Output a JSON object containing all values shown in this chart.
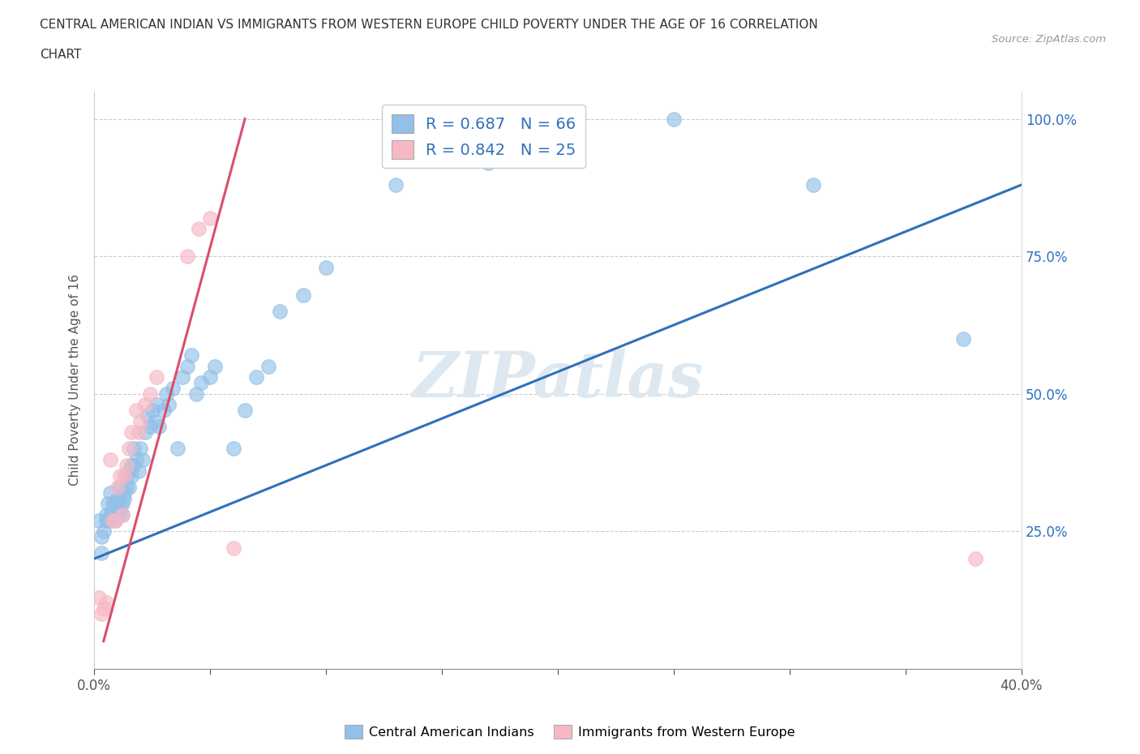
{
  "title_line1": "CENTRAL AMERICAN INDIAN VS IMMIGRANTS FROM WESTERN EUROPE CHILD POVERTY UNDER THE AGE OF 16 CORRELATION",
  "title_line2": "CHART",
  "source_text": "Source: ZipAtlas.com",
  "ylabel": "Child Poverty Under the Age of 16",
  "xlim": [
    0.0,
    0.4
  ],
  "ylim": [
    0.0,
    1.05
  ],
  "x_ticks": [
    0.0,
    0.05,
    0.1,
    0.15,
    0.2,
    0.25,
    0.3,
    0.35,
    0.4
  ],
  "y_ticks": [
    0.0,
    0.25,
    0.5,
    0.75,
    1.0
  ],
  "legend_r1_pre": "R = ",
  "legend_r1_val": "0.687",
  "legend_r1_post": "   N = 66",
  "legend_r2_pre": "R = ",
  "legend_r2_val": "0.842",
  "legend_r2_post": "   N = 25",
  "watermark": "ZIPatlas",
  "blue_color": "#92c0e8",
  "pink_color": "#f7b8c4",
  "trend_blue": "#3070bb",
  "trend_pink": "#d94f6e",
  "blue_scatter": [
    [
      0.002,
      0.27
    ],
    [
      0.003,
      0.24
    ],
    [
      0.003,
      0.21
    ],
    [
      0.004,
      0.25
    ],
    [
      0.005,
      0.27
    ],
    [
      0.005,
      0.28
    ],
    [
      0.006,
      0.3
    ],
    [
      0.006,
      0.27
    ],
    [
      0.007,
      0.32
    ],
    [
      0.007,
      0.28
    ],
    [
      0.008,
      0.3
    ],
    [
      0.008,
      0.28
    ],
    [
      0.009,
      0.27
    ],
    [
      0.009,
      0.3
    ],
    [
      0.01,
      0.28
    ],
    [
      0.01,
      0.31
    ],
    [
      0.01,
      0.3
    ],
    [
      0.011,
      0.33
    ],
    [
      0.011,
      0.29
    ],
    [
      0.012,
      0.3
    ],
    [
      0.012,
      0.28
    ],
    [
      0.013,
      0.32
    ],
    [
      0.013,
      0.31
    ],
    [
      0.014,
      0.35
    ],
    [
      0.014,
      0.33
    ],
    [
      0.015,
      0.36
    ],
    [
      0.015,
      0.33
    ],
    [
      0.016,
      0.37
    ],
    [
      0.016,
      0.35
    ],
    [
      0.017,
      0.4
    ],
    [
      0.017,
      0.37
    ],
    [
      0.018,
      0.38
    ],
    [
      0.019,
      0.36
    ],
    [
      0.02,
      0.4
    ],
    [
      0.021,
      0.38
    ],
    [
      0.022,
      0.43
    ],
    [
      0.023,
      0.46
    ],
    [
      0.024,
      0.44
    ],
    [
      0.025,
      0.47
    ],
    [
      0.026,
      0.45
    ],
    [
      0.027,
      0.48
    ],
    [
      0.028,
      0.44
    ],
    [
      0.03,
      0.47
    ],
    [
      0.031,
      0.5
    ],
    [
      0.032,
      0.48
    ],
    [
      0.034,
      0.51
    ],
    [
      0.036,
      0.4
    ],
    [
      0.038,
      0.53
    ],
    [
      0.04,
      0.55
    ],
    [
      0.042,
      0.57
    ],
    [
      0.044,
      0.5
    ],
    [
      0.046,
      0.52
    ],
    [
      0.05,
      0.53
    ],
    [
      0.052,
      0.55
    ],
    [
      0.06,
      0.4
    ],
    [
      0.065,
      0.47
    ],
    [
      0.07,
      0.53
    ],
    [
      0.075,
      0.55
    ],
    [
      0.08,
      0.65
    ],
    [
      0.09,
      0.68
    ],
    [
      0.1,
      0.73
    ],
    [
      0.13,
      0.88
    ],
    [
      0.17,
      0.92
    ],
    [
      0.25,
      1.0
    ],
    [
      0.31,
      0.88
    ],
    [
      0.375,
      0.6
    ]
  ],
  "pink_scatter": [
    [
      0.002,
      0.13
    ],
    [
      0.003,
      0.1
    ],
    [
      0.004,
      0.11
    ],
    [
      0.005,
      0.12
    ],
    [
      0.007,
      0.38
    ],
    [
      0.008,
      0.27
    ],
    [
      0.009,
      0.27
    ],
    [
      0.01,
      0.33
    ],
    [
      0.011,
      0.35
    ],
    [
      0.012,
      0.28
    ],
    [
      0.013,
      0.35
    ],
    [
      0.014,
      0.37
    ],
    [
      0.015,
      0.4
    ],
    [
      0.016,
      0.43
    ],
    [
      0.018,
      0.47
    ],
    [
      0.019,
      0.43
    ],
    [
      0.02,
      0.45
    ],
    [
      0.022,
      0.48
    ],
    [
      0.024,
      0.5
    ],
    [
      0.027,
      0.53
    ],
    [
      0.04,
      0.75
    ],
    [
      0.045,
      0.8
    ],
    [
      0.05,
      0.82
    ],
    [
      0.06,
      0.22
    ],
    [
      0.38,
      0.2
    ]
  ],
  "blue_trend_x": [
    0.0,
    0.4
  ],
  "blue_trend_y": [
    0.2,
    0.88
  ],
  "pink_trend_x": [
    0.004,
    0.065
  ],
  "pink_trend_y": [
    0.05,
    1.0
  ]
}
